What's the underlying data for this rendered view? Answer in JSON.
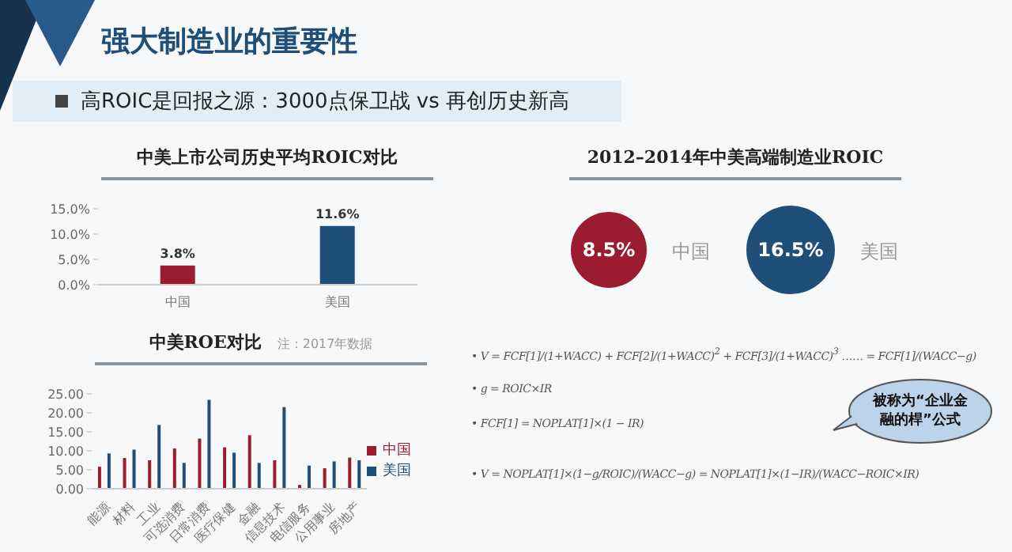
{
  "chart_data": [
    {
      "type": "other",
      "title": "强大制造业的重要性",
      "subtitle": "高ROIC是回报之源：3000点保卫战 vs 再创历史新高"
    },
    {
      "type": "bar",
      "title": "中美上市公司历史平均ROIC对比",
      "categories": [
        "中国",
        "美国"
      ],
      "values": [
        3.8,
        11.6
      ],
      "colors": [
        "#9b1b30",
        "#1f4e79"
      ],
      "value_labels": [
        "3.8%",
        "11.6%"
      ],
      "ylim": [
        0,
        15
      ],
      "yticks": [
        {
          "value": 0,
          "label": "0.0%"
        },
        {
          "value": 5,
          "label": "5.0%"
        },
        {
          "value": 10,
          "label": "10.0%"
        },
        {
          "value": 15,
          "label": "15.0%"
        }
      ],
      "grid": false,
      "legend": false
    },
    {
      "type": "other",
      "title": "2012–2014年中美高端制造业ROIC",
      "categories": [
        "中国",
        "美国"
      ],
      "values": [
        8.5,
        16.5
      ],
      "colors": [
        "#9b1b30",
        "#1f4e79"
      ],
      "value_labels": [
        "8.5%",
        "16.5%"
      ]
    },
    {
      "type": "bar",
      "title": "中美ROE对比",
      "subtitle": "注：2017年数据",
      "categories": [
        "能源",
        "材料",
        "工业",
        "可选消费",
        "日常消费",
        "医疗保健",
        "金融",
        "信息技术",
        "电信服务",
        "公用事业",
        "房地产"
      ],
      "series": [
        {
          "name": "中国",
          "color": "#9b1b30",
          "values": [
            5.8,
            8.1,
            7.5,
            10.6,
            13.2,
            10.9,
            14.1,
            7.5,
            1.0,
            5.4,
            8.2
          ]
        },
        {
          "name": "美国",
          "color": "#1f4e79",
          "values": [
            9.3,
            10.3,
            16.8,
            6.8,
            23.4,
            9.5,
            6.8,
            21.5,
            6.1,
            7.2,
            7.5
          ]
        }
      ],
      "ylim": [
        0,
        25
      ],
      "yticks": [
        {
          "value": 0,
          "label": "0.00"
        },
        {
          "value": 5,
          "label": "5.00"
        },
        {
          "value": 10,
          "label": "10.00"
        },
        {
          "value": 15,
          "label": "15.00"
        },
        {
          "value": 20,
          "label": "20.00"
        },
        {
          "value": 25,
          "label": "25.00"
        }
      ],
      "grid": false,
      "legend": "right"
    },
    {
      "type": "other",
      "annotations": [
        "• V = FCF[1]/(1+WACC) + FCF[2]/(1+WACC)$^{2}$ + FCF[3]/(1+WACC)$^{3}$ …… = FCF[1]/(WACC−g)",
        "• g = ROIC×IR",
        "• FCF[1] = NOPLAT[1]×(1 − IR)",
        "• V = NOPLAT[1]×(1−g/ROIC)/(WACC−g) = NOPLAT[1]×(1−IR)/(WACC−ROIC×IR)",
        "被称为“企业金融的桿”公式"
      ]
    }
  ]
}
